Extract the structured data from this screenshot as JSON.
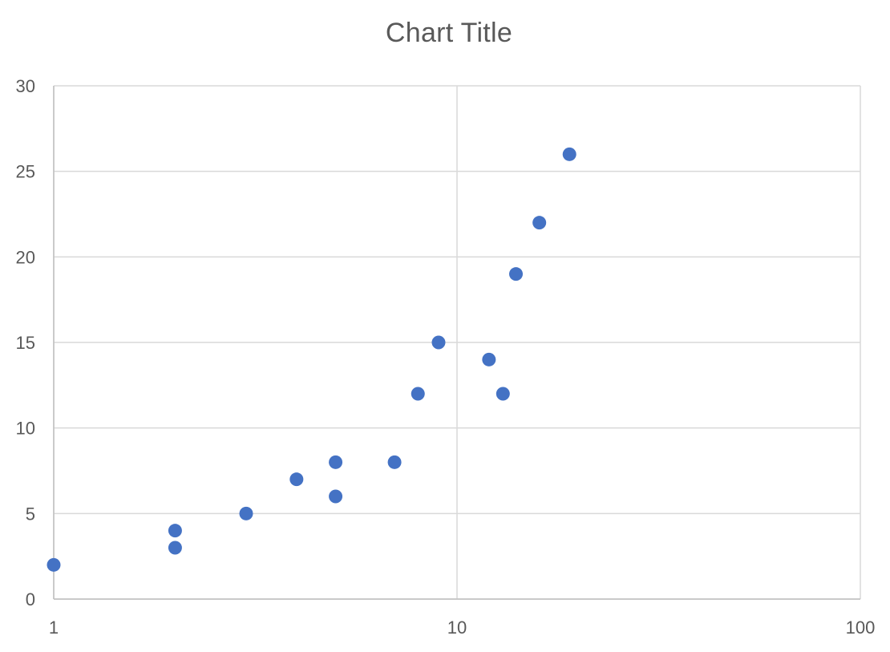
{
  "chart_data": {
    "type": "scatter",
    "title": "Chart Title",
    "xlabel": "",
    "ylabel": "",
    "x_scale": "log",
    "xlim": [
      1,
      100
    ],
    "ylim": [
      0,
      30
    ],
    "x_ticks": [
      1,
      10,
      100
    ],
    "y_ticks": [
      0,
      5,
      10,
      15,
      20,
      25,
      30
    ],
    "x_tick_labels": [
      "1",
      "10",
      "100"
    ],
    "y_tick_labels": [
      "0",
      "5",
      "10",
      "15",
      "20",
      "25",
      "30"
    ],
    "grid": true,
    "legend": "none",
    "marker_color": "#4472C4",
    "gridline_color": "#D9D9D9",
    "text_color": "#595959",
    "points": [
      {
        "x": 1,
        "y": 2
      },
      {
        "x": 2,
        "y": 3
      },
      {
        "x": 2,
        "y": 4
      },
      {
        "x": 3,
        "y": 5
      },
      {
        "x": 4,
        "y": 7
      },
      {
        "x": 5,
        "y": 6
      },
      {
        "x": 5,
        "y": 8
      },
      {
        "x": 7,
        "y": 8
      },
      {
        "x": 8,
        "y": 12
      },
      {
        "x": 9,
        "y": 15
      },
      {
        "x": 12,
        "y": 14
      },
      {
        "x": 13,
        "y": 12
      },
      {
        "x": 14,
        "y": 19
      },
      {
        "x": 16,
        "y": 22
      },
      {
        "x": 19,
        "y": 26
      }
    ]
  }
}
